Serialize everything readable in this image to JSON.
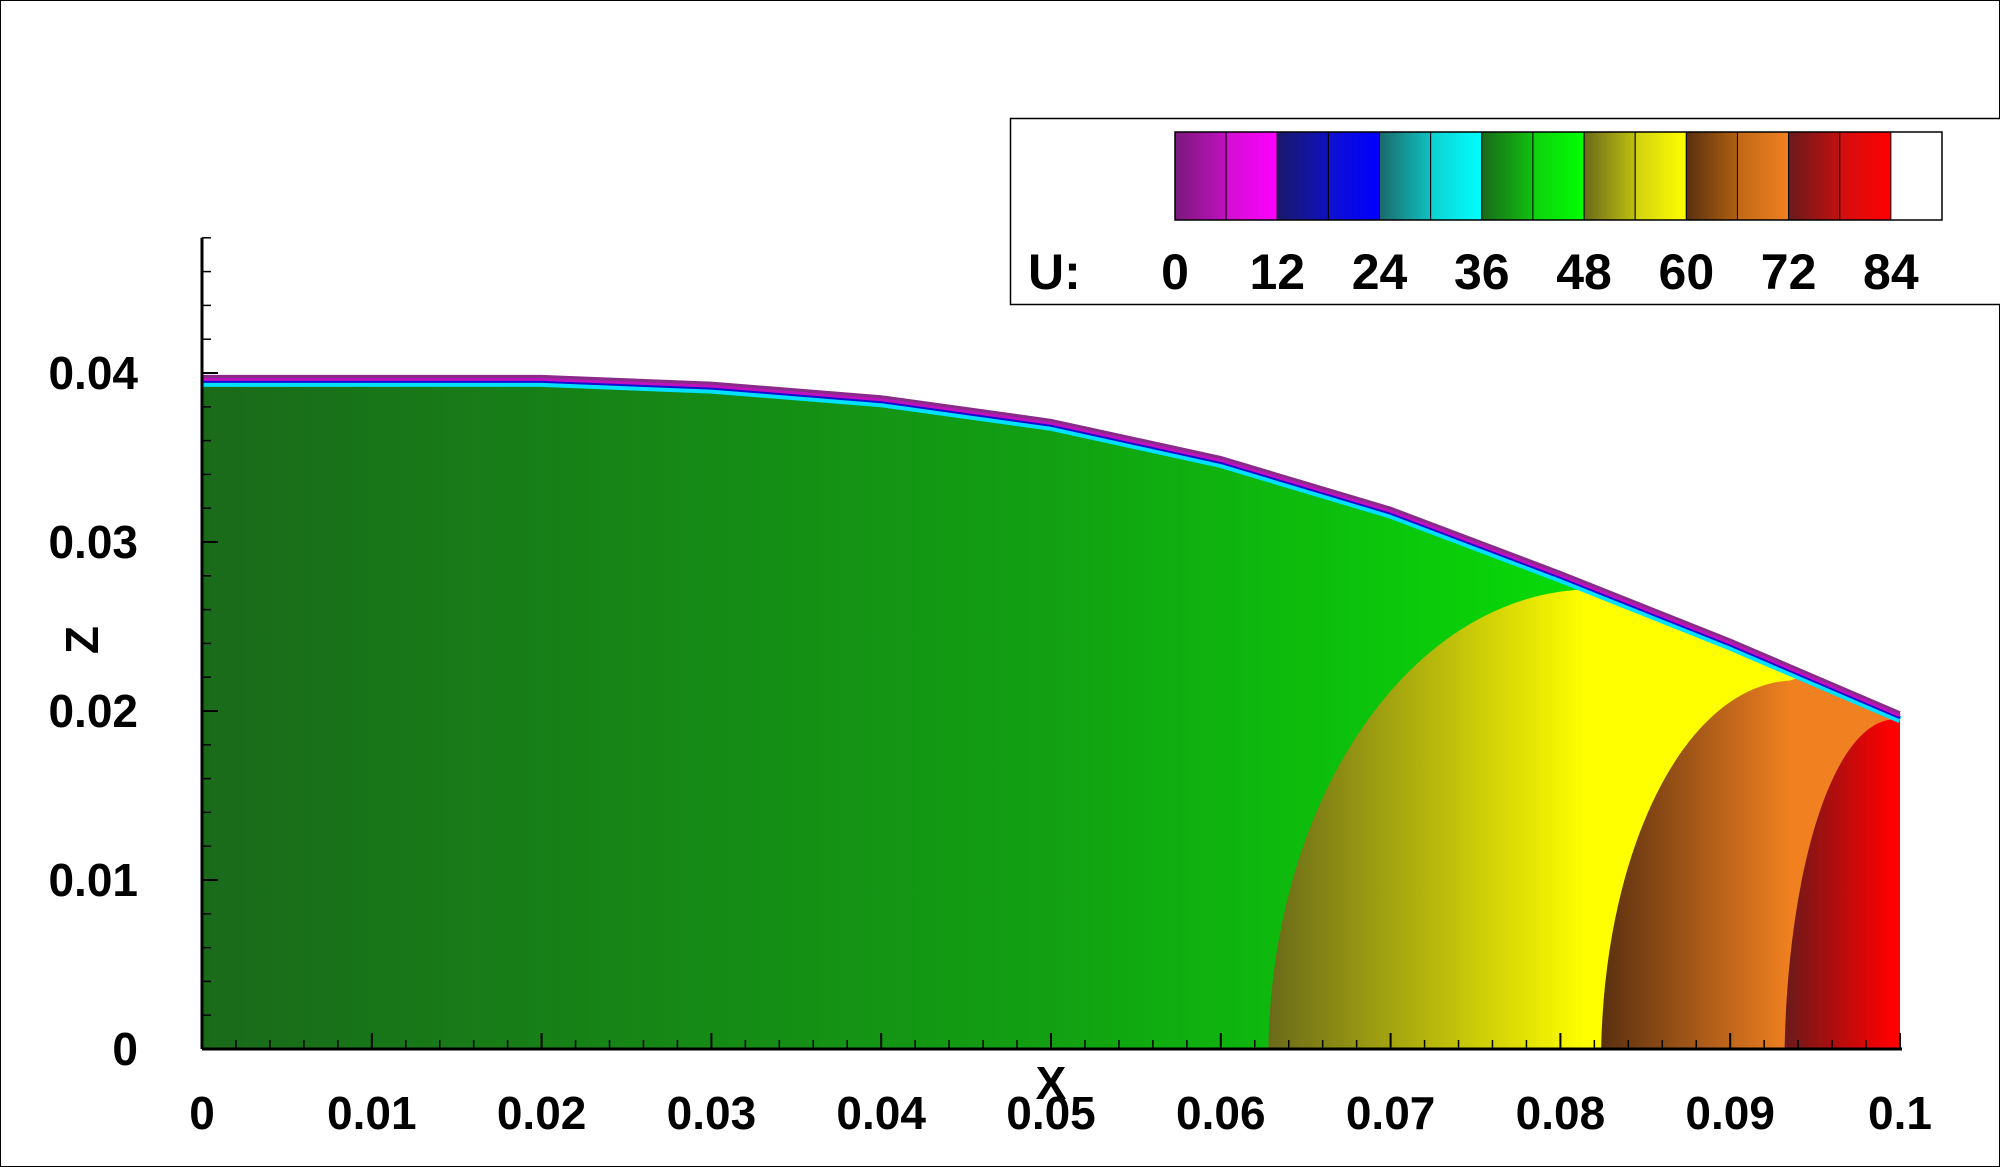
{
  "chart_data": {
    "type": "heatmap",
    "xlabel": "X",
    "ylabel": "Z",
    "xlim": [
      0,
      0.1
    ],
    "ylim": [
      0,
      0.04
    ],
    "x_ticks": [
      "0",
      "0.01",
      "0.02",
      "0.03",
      "0.04",
      "0.05",
      "0.06",
      "0.07",
      "0.08",
      "0.09",
      "0.1"
    ],
    "y_ticks": [
      "0",
      "0.01",
      "0.02",
      "0.03",
      "0.04"
    ],
    "x_tick_values": [
      0,
      0.01,
      0.02,
      0.03,
      0.04,
      0.05,
      0.06,
      0.07,
      0.08,
      0.09,
      0.1
    ],
    "y_tick_values": [
      0,
      0.01,
      0.02,
      0.03,
      0.04
    ],
    "y_axis_max": 0.048,
    "legend_position": "top-right",
    "grid": false,
    "colorbar": {
      "variable": "U:",
      "labels": [
        "0",
        "12",
        "24",
        "36",
        "48",
        "60",
        "72",
        "84"
      ],
      "min": 0,
      "max": 90,
      "bands": [
        {
          "from": 0,
          "to": 6,
          "c0": "#7a1a7a",
          "c1": "#c010c0"
        },
        {
          "from": 6,
          "to": 12,
          "c0": "#d010d0",
          "c1": "#ff00ff"
        },
        {
          "from": 12,
          "to": 18,
          "c0": "#1a1a6a",
          "c1": "#1010c0"
        },
        {
          "from": 18,
          "to": 24,
          "c0": "#1010d0",
          "c1": "#0000ff"
        },
        {
          "from": 24,
          "to": 30,
          "c0": "#1a6a6a",
          "c1": "#10c0c0"
        },
        {
          "from": 30,
          "to": 36,
          "c0": "#10d0d0",
          "c1": "#00ffff"
        },
        {
          "from": 36,
          "to": 42,
          "c0": "#1a6a1a",
          "c1": "#10c010"
        },
        {
          "from": 42,
          "to": 48,
          "c0": "#10d010",
          "c1": "#00ff00"
        },
        {
          "from": 48,
          "to": 54,
          "c0": "#6a6a1a",
          "c1": "#c0c010"
        },
        {
          "from": 54,
          "to": 60,
          "c0": "#d0d010",
          "c1": "#ffff00"
        },
        {
          "from": 60,
          "to": 66,
          "c0": "#5a3010",
          "c1": "#b06010"
        },
        {
          "from": 66,
          "to": 72,
          "c0": "#c06818",
          "c1": "#f08020"
        },
        {
          "from": 72,
          "to": 78,
          "c0": "#6a1a1a",
          "c1": "#c01010"
        },
        {
          "from": 78,
          "to": 84,
          "c0": "#d01010",
          "c1": "#ff0000"
        }
      ]
    },
    "surface_profile": {
      "x": [
        0,
        0.02,
        0.03,
        0.04,
        0.05,
        0.06,
        0.07,
        0.08,
        0.09,
        0.1
      ],
      "z": [
        0.0398,
        0.0398,
        0.0394,
        0.0386,
        0.0372,
        0.035,
        0.032,
        0.0282,
        0.0242,
        0.0199
      ]
    },
    "contour_fronts": [
      {
        "x_base": 0.0628,
        "x_top": 0.0815,
        "z_top": 0.0272,
        "c_left": "#6a6a1a",
        "c_right": "#ffff00"
      },
      {
        "x_base": 0.0824,
        "x_top": 0.0935,
        "z_top": 0.0218,
        "c_left": "#5a3010",
        "c_right": "#f08020"
      },
      {
        "x_base": 0.0932,
        "x_top": 0.0995,
        "z_top": 0.0195,
        "c_left": "#6a1a1a",
        "c_right": "#ff0000"
      }
    ],
    "background_fill": {
      "c_left": "#1a6a1a",
      "c_mid": "#12a012",
      "c_right": "#00ff00"
    }
  }
}
